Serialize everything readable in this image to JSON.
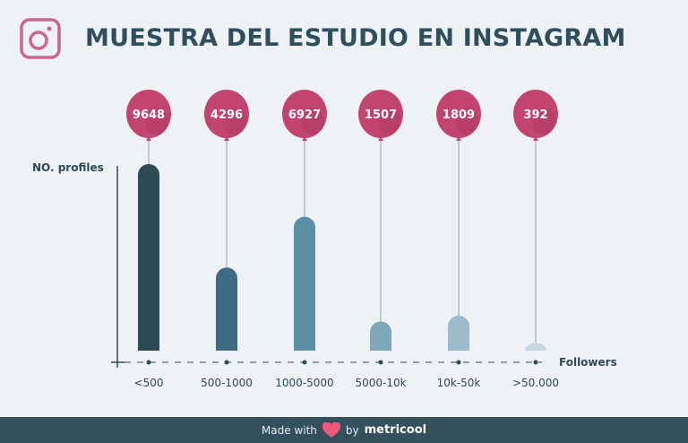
{
  "header": {
    "title": "MUESTRA DEL ESTUDIO EN INSTAGRAM",
    "logo_icon": "instagram-icon"
  },
  "chart_data": {
    "type": "bar",
    "title": "MUESTRA DEL ESTUDIO EN INSTAGRAM",
    "xlabel": "Followers",
    "ylabel": "NO. profiles",
    "categories": [
      "<500",
      "500-1000",
      "1000-5000",
      "5000-10k",
      "10k-50k",
      ">50.000"
    ],
    "values": [
      9648,
      4296,
      6927,
      1507,
      1809,
      392
    ],
    "colors": [
      "#2f4a57",
      "#3e6b81",
      "#5b8fa8",
      "#7fa7ba",
      "#9dbccb",
      "#c5d7df"
    ],
    "balloon_color": "#c2456f",
    "grid": false
  },
  "footer": {
    "made_with": "Made with",
    "by": "by",
    "brand": "metricool",
    "heart_color": "#f0577a"
  }
}
